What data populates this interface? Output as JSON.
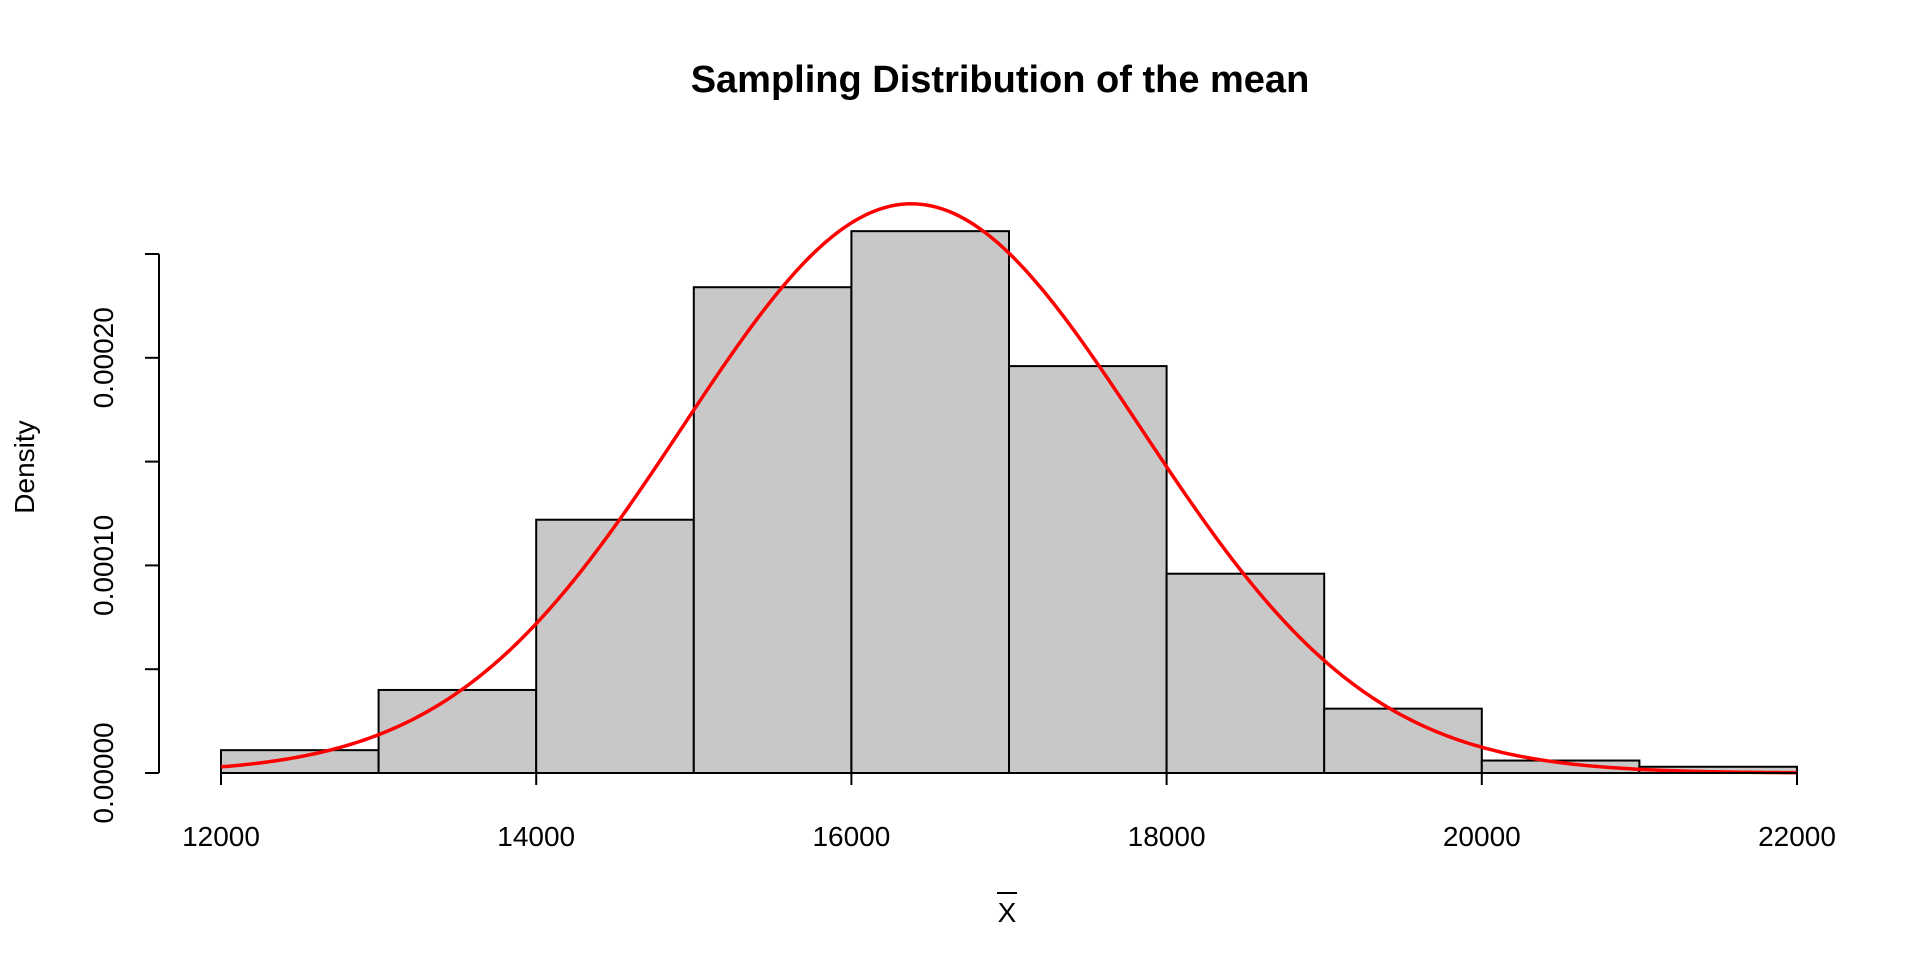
{
  "chart_data": {
    "type": "bar",
    "subtype": "histogram",
    "title": "Sampling Distribution of the mean",
    "xlabel": "X",
    "xlabel_overbar": true,
    "ylabel": "Density",
    "bins": [
      {
        "from": 12000,
        "to": 13000,
        "density": 1.1e-05
      },
      {
        "from": 13000,
        "to": 14000,
        "density": 4e-05
      },
      {
        "from": 14000,
        "to": 15000,
        "density": 0.000122
      },
      {
        "from": 15000,
        "to": 16000,
        "density": 0.000234
      },
      {
        "from": 16000,
        "to": 17000,
        "density": 0.000261
      },
      {
        "from": 17000,
        "to": 18000,
        "density": 0.000196
      },
      {
        "from": 18000,
        "to": 19000,
        "density": 9.6e-05
      },
      {
        "from": 19000,
        "to": 20000,
        "density": 3.1e-05
      },
      {
        "from": 20000,
        "to": 21000,
        "density": 6e-06
      },
      {
        "from": 21000,
        "to": 22000,
        "density": 3e-06
      }
    ],
    "overlay": {
      "type": "normal-density-curve",
      "mean": 16380,
      "sd": 1455
    },
    "xlim": [
      12000,
      22000
    ],
    "ylim": [
      0,
      0.00025
    ],
    "x_ticks": [
      "12000",
      "14000",
      "16000",
      "18000",
      "20000",
      "22000"
    ],
    "x_tick_values": [
      12000,
      14000,
      16000,
      18000,
      20000,
      22000
    ],
    "y_ticks": [
      "0.00000",
      "0.00010",
      "0.00020"
    ],
    "y_tick_values": [
      0.0,
      0.0001,
      0.0002
    ],
    "y_minor_tick_values": [
      5e-05,
      0.00015,
      0.00025
    ],
    "grid": false,
    "colors": {
      "bar_fill": "#c8c8c8",
      "bar_stroke": "#000000",
      "curve": "#ff0000"
    }
  }
}
